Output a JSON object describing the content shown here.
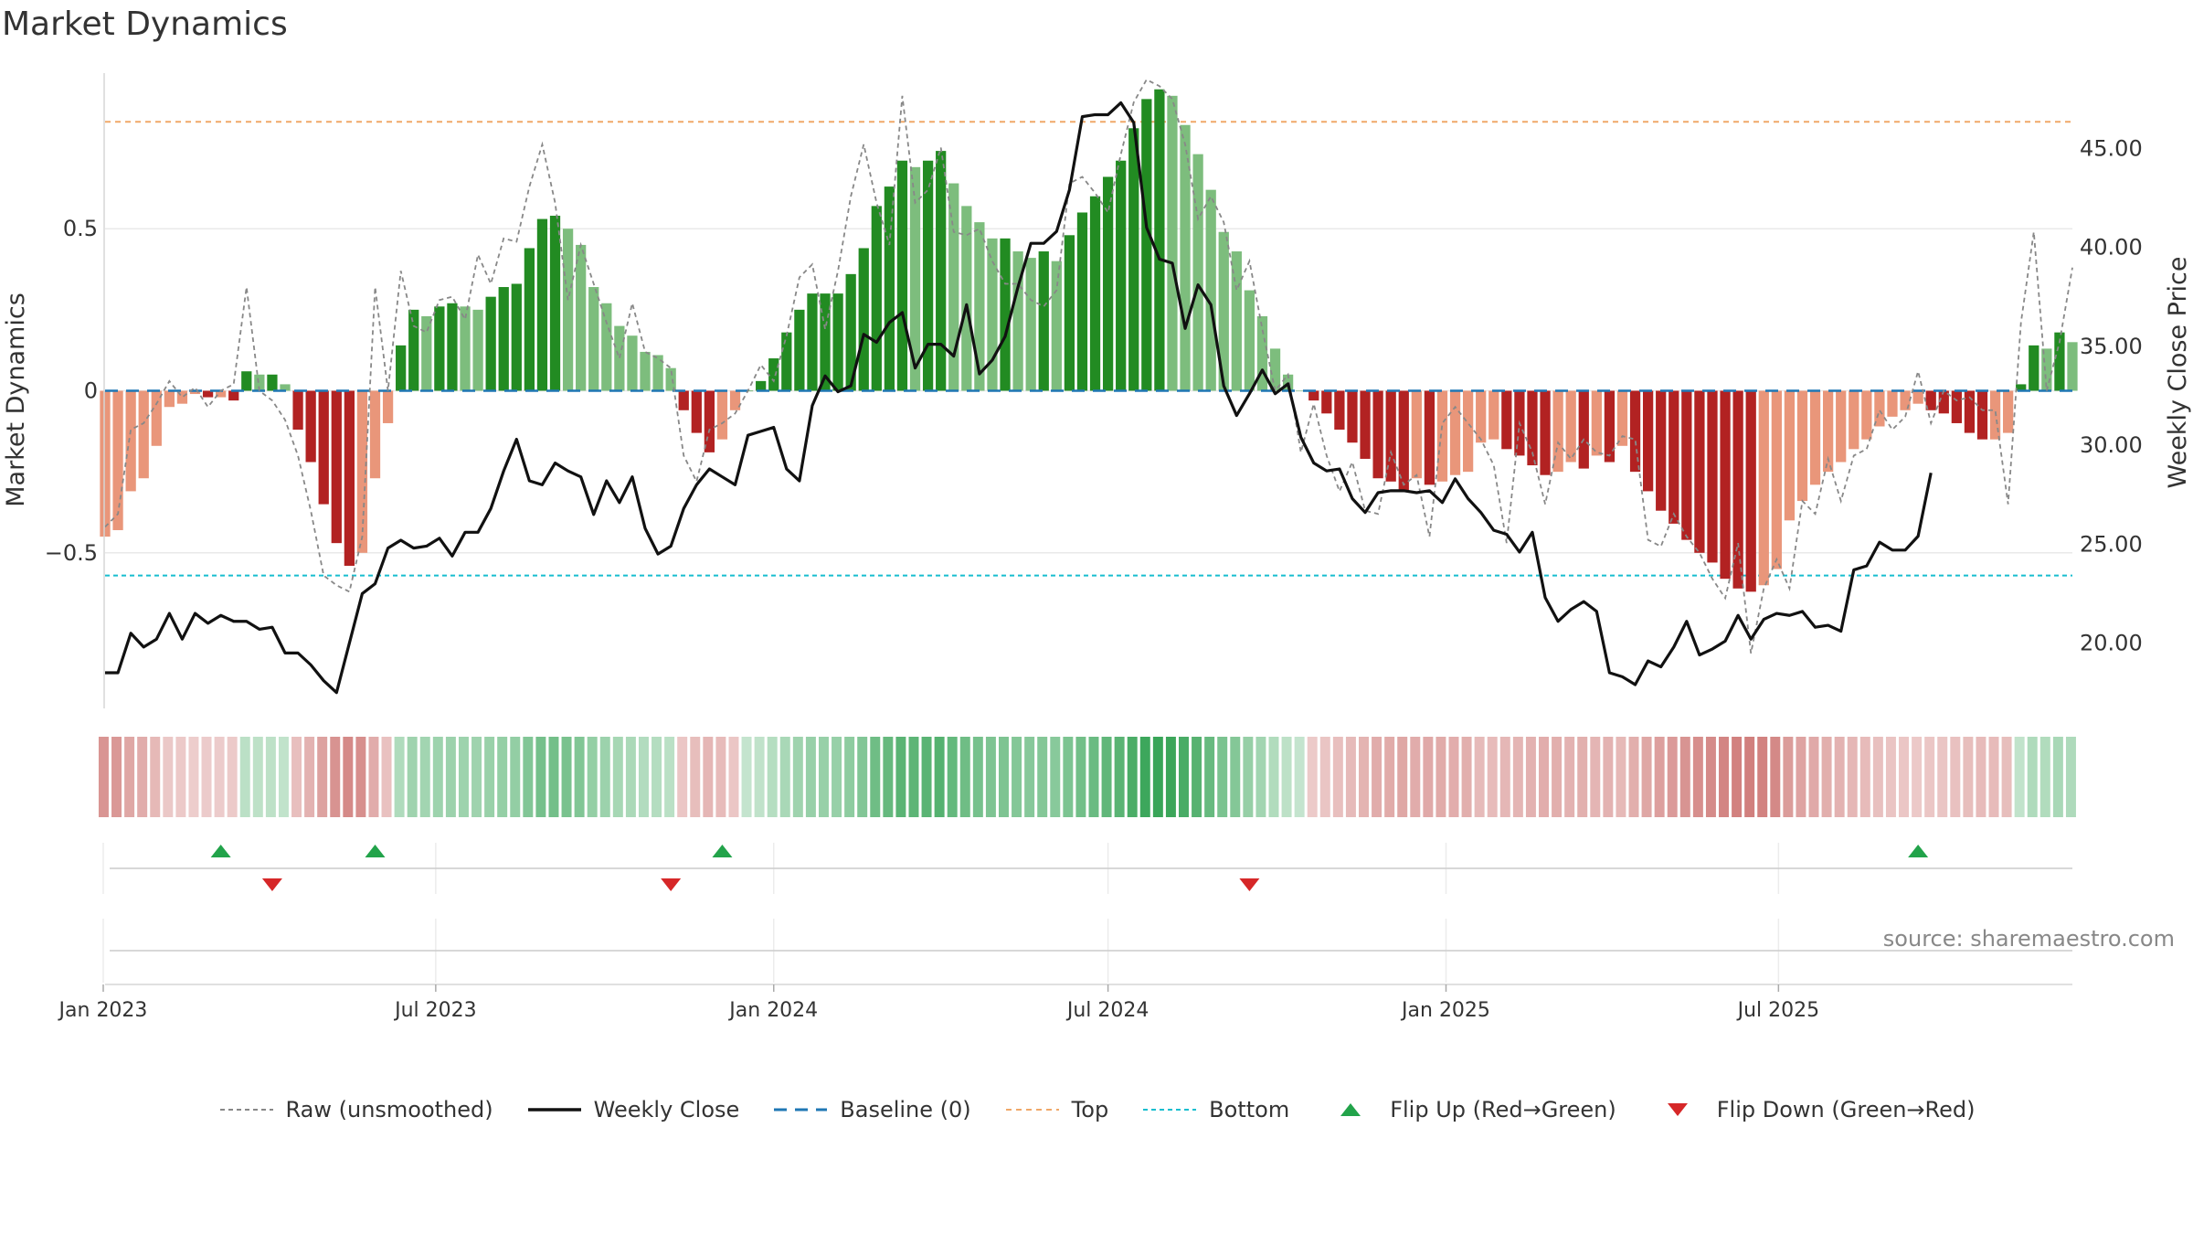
{
  "title": "Market Dynamics",
  "source": "source: sharemaestro.com",
  "colors": {
    "pos_strong": "#228b22",
    "pos_light": "#7dbd7d",
    "neg_strong": "#b22222",
    "neg_light": "#e9967a",
    "close": "#111111",
    "raw": "#888888",
    "baseline": "#1f77b4",
    "top": "#f0a868",
    "bottom": "#17becf",
    "flip_up": "#22a34a",
    "flip_down": "#d62728"
  },
  "legend": [
    {
      "label": "Raw (unsmoothed)",
      "symbol": "raw"
    },
    {
      "label": "Weekly Close",
      "symbol": "close"
    },
    {
      "label": "Baseline (0)",
      "symbol": "baseline"
    },
    {
      "label": "Top",
      "symbol": "top"
    },
    {
      "label": "Bottom",
      "symbol": "bottom"
    },
    {
      "label": "Flip Up (Red→Green)",
      "symbol": "flip_up"
    },
    {
      "label": "Flip Down (Green→Red)",
      "symbol": "flip_down"
    }
  ],
  "chart_data": {
    "type": "bar",
    "start_date": "2023-01-02",
    "frequency": "weekly",
    "ylabel_left": "Market Dynamics",
    "ylabel_right": "Weekly Close Price",
    "yticks_left": [
      0.5,
      0,
      -0.5
    ],
    "ytick_labels_left": [
      "0.5",
      "0",
      "−0.5"
    ],
    "yticks_right": [
      45,
      40,
      35,
      30,
      25,
      20
    ],
    "ytick_labels_right": [
      "45.00",
      "40.00",
      "35.00",
      "30.00",
      "25.00",
      "20.00"
    ],
    "ylim_left": [
      -0.98,
      0.98
    ],
    "ylim_right": [
      16.7,
      48.8
    ],
    "top_line": 0.83,
    "bottom_line": -0.57,
    "baseline": 0,
    "xticks": [
      "2023-01-01",
      "2023-07-01",
      "2024-01-01",
      "2024-07-01",
      "2025-01-01",
      "2025-07-01"
    ],
    "xtick_labels": [
      "Jan 2023",
      "Jul 2023",
      "Jan 2024",
      "Jul 2024",
      "Jan 2025",
      "Jul 2025"
    ],
    "flip_up_dates": [
      "2023-03-06",
      "2023-05-29",
      "2023-12-04",
      "2025-09-15"
    ],
    "flip_down_dates": [
      "2023-04-03",
      "2023-11-06",
      "2024-09-16"
    ],
    "dynamics": [
      -0.45,
      -0.43,
      -0.31,
      -0.27,
      -0.17,
      -0.05,
      -0.04,
      -0.01,
      -0.02,
      -0.02,
      -0.03,
      0.06,
      0.05,
      0.05,
      0.02,
      -0.12,
      -0.22,
      -0.35,
      -0.47,
      -0.54,
      -0.5,
      -0.27,
      -0.1,
      0.14,
      0.25,
      0.23,
      0.26,
      0.27,
      0.26,
      0.25,
      0.29,
      0.32,
      0.33,
      0.44,
      0.53,
      0.54,
      0.5,
      0.45,
      0.32,
      0.27,
      0.2,
      0.17,
      0.12,
      0.11,
      0.07,
      -0.06,
      -0.13,
      -0.19,
      -0.15,
      -0.06,
      0.0,
      0.03,
      0.1,
      0.18,
      0.25,
      0.3,
      0.3,
      0.3,
      0.36,
      0.44,
      0.57,
      0.63,
      0.71,
      0.69,
      0.71,
      0.74,
      0.64,
      0.57,
      0.52,
      0.47,
      0.47,
      0.43,
      0.41,
      0.43,
      0.4,
      0.48,
      0.55,
      0.6,
      0.66,
      0.71,
      0.81,
      0.9,
      0.93,
      0.91,
      0.82,
      0.73,
      0.62,
      0.49,
      0.43,
      0.31,
      0.23,
      0.13,
      0.05,
      0.0,
      -0.03,
      -0.07,
      -0.12,
      -0.16,
      -0.21,
      -0.27,
      -0.28,
      -0.31,
      -0.27,
      -0.29,
      -0.28,
      -0.26,
      -0.25,
      -0.16,
      -0.15,
      -0.18,
      -0.2,
      -0.23,
      -0.26,
      -0.25,
      -0.22,
      -0.24,
      -0.2,
      -0.22,
      -0.17,
      -0.25,
      -0.31,
      -0.37,
      -0.41,
      -0.46,
      -0.5,
      -0.53,
      -0.58,
      -0.61,
      -0.62,
      -0.6,
      -0.55,
      -0.4,
      -0.34,
      -0.29,
      -0.25,
      -0.22,
      -0.18,
      -0.15,
      -0.11,
      -0.08,
      -0.06,
      -0.04,
      -0.06,
      -0.07,
      -0.1,
      -0.13,
      -0.15,
      -0.15,
      -0.13,
      0.02,
      0.14,
      0.13,
      0.18,
      0.15
    ],
    "raw": [
      -0.42,
      -0.38,
      -0.12,
      -0.1,
      -0.04,
      0.03,
      -0.02,
      0.01,
      -0.05,
      0.0,
      0.02,
      0.32,
      0.0,
      -0.03,
      -0.09,
      -0.2,
      -0.37,
      -0.57,
      -0.6,
      -0.62,
      -0.45,
      0.32,
      0.0,
      0.37,
      0.2,
      0.18,
      0.28,
      0.29,
      0.22,
      0.42,
      0.33,
      0.47,
      0.46,
      0.63,
      0.76,
      0.58,
      0.28,
      0.45,
      0.33,
      0.21,
      0.1,
      0.27,
      0.12,
      0.1,
      0.07,
      -0.2,
      -0.28,
      -0.12,
      -0.1,
      -0.07,
      0.0,
      0.08,
      0.03,
      0.17,
      0.35,
      0.39,
      0.19,
      0.37,
      0.6,
      0.76,
      0.58,
      0.45,
      0.91,
      0.58,
      0.62,
      0.75,
      0.49,
      0.48,
      0.5,
      0.4,
      0.33,
      0.33,
      0.28,
      0.26,
      0.31,
      0.64,
      0.66,
      0.61,
      0.55,
      0.73,
      0.89,
      0.96,
      0.94,
      0.9,
      0.76,
      0.53,
      0.6,
      0.52,
      0.31,
      0.4,
      0.19,
      0.0,
      0.05,
      -0.19,
      -0.04,
      -0.2,
      -0.31,
      -0.22,
      -0.37,
      -0.38,
      -0.19,
      -0.29,
      -0.26,
      -0.45,
      -0.1,
      -0.05,
      -0.1,
      -0.15,
      -0.23,
      -0.47,
      -0.1,
      -0.19,
      -0.35,
      -0.16,
      -0.21,
      -0.15,
      -0.19,
      -0.2,
      -0.14,
      -0.15,
      -0.46,
      -0.48,
      -0.38,
      -0.45,
      -0.5,
      -0.58,
      -0.64,
      -0.47,
      -0.81,
      -0.61,
      -0.52,
      -0.61,
      -0.34,
      -0.38,
      -0.21,
      -0.34,
      -0.2,
      -0.18,
      -0.06,
      -0.12,
      -0.08,
      0.06,
      -0.1,
      0.0,
      -0.03,
      -0.02,
      -0.06,
      -0.06,
      -0.35,
      0.21,
      0.49,
      0.0,
      0.15,
      0.38
    ],
    "close": [
      18.5,
      18.5,
      20.5,
      19.8,
      20.2,
      21.5,
      20.2,
      21.5,
      21.0,
      21.4,
      21.1,
      21.1,
      20.7,
      20.8,
      19.5,
      19.5,
      18.9,
      18.1,
      17.5,
      20.0,
      22.5,
      23.0,
      24.8,
      25.2,
      24.8,
      24.9,
      25.3,
      24.4,
      25.6,
      25.6,
      26.8,
      28.7,
      30.3,
      28.2,
      28.0,
      29.1,
      28.7,
      28.4,
      26.5,
      28.2,
      27.1,
      28.4,
      25.8,
      24.5,
      24.9,
      26.8,
      28.0,
      28.8,
      28.4,
      28.0,
      30.5,
      30.7,
      30.9,
      28.8,
      28.2,
      32.0,
      33.5,
      32.7,
      33.0,
      35.6,
      35.2,
      36.2,
      36.7,
      33.9,
      35.1,
      35.1,
      34.5,
      37.1,
      33.6,
      34.3,
      35.5,
      38.0,
      40.2,
      40.2,
      40.8,
      42.9,
      46.6,
      46.7,
      46.7,
      47.3,
      46.3,
      41.0,
      39.4,
      39.2,
      35.9,
      38.1,
      37.1,
      33.0,
      31.5,
      32.6,
      33.8,
      32.6,
      33.1,
      30.4,
      29.1,
      28.7,
      28.8,
      27.3,
      26.6,
      27.6,
      27.7,
      27.7,
      27.6,
      27.7,
      27.1,
      28.3,
      27.3,
      26.6,
      25.7,
      25.5,
      24.6,
      25.6,
      22.3,
      21.1,
      21.7,
      22.1,
      21.6,
      18.5,
      18.3,
      17.9,
      19.1,
      18.8,
      19.8,
      21.1,
      19.4,
      19.7,
      20.1,
      21.4,
      20.2,
      21.2,
      21.5,
      21.4,
      21.6,
      20.8,
      20.9,
      20.6,
      23.7,
      23.9,
      25.1,
      24.7,
      24.7,
      25.4,
      28.6
    ]
  }
}
